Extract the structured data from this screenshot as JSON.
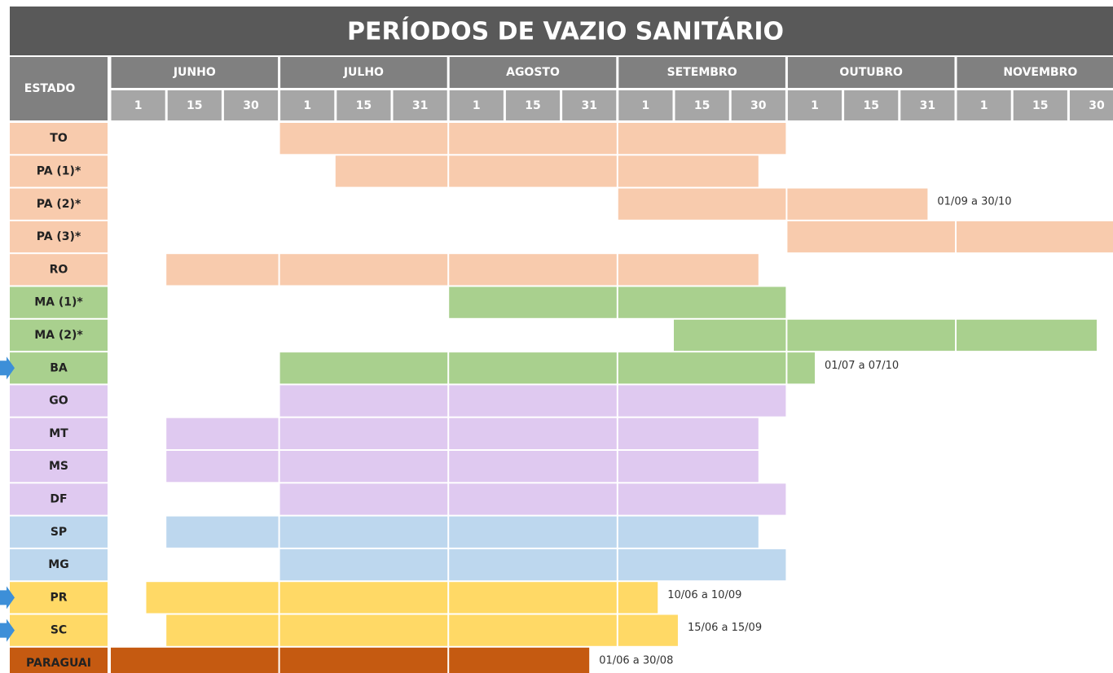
{
  "chart_data": {
    "type": "gantt",
    "title": "PERÍODOS DE VAZIO SANITÁRIO",
    "row_header": "ESTADO",
    "months": [
      {
        "name": "JUNHO",
        "days": [
          1,
          15,
          30
        ]
      },
      {
        "name": "JULHO",
        "days": [
          1,
          15,
          31
        ]
      },
      {
        "name": "AGOSTO",
        "days": [
          1,
          15,
          31
        ]
      },
      {
        "name": "SETEMBRO",
        "days": [
          1,
          15,
          30
        ]
      },
      {
        "name": "OUTUBRO",
        "days": [
          1,
          15,
          31
        ]
      },
      {
        "name": "NOVEMBRO",
        "days": [
          1,
          15,
          30
        ]
      }
    ],
    "rows": [
      {
        "name": "TO",
        "color": "#f8cbad",
        "start": "01/07",
        "end": "30/09"
      },
      {
        "name": "PA (1)*",
        "color": "#f8cbad",
        "start": "15/07",
        "end": "29/09"
      },
      {
        "name": "PA (2)*",
        "color": "#f8cbad",
        "start": "01/09",
        "end": "30/10",
        "label": "01/09 a 30/10"
      },
      {
        "name": "PA (3)*",
        "color": "#f8cbad",
        "start": "01/10",
        "end": "30/11"
      },
      {
        "name": "RO",
        "color": "#f8cbad",
        "start": "15/06",
        "end": "29/09"
      },
      {
        "name": "MA (1)*",
        "color": "#a9d08e",
        "start": "01/08",
        "end": "30/09"
      },
      {
        "name": "MA (2)*",
        "color": "#a9d08e",
        "start": "15/09",
        "end": "29/11"
      },
      {
        "name": "BA",
        "color": "#a9d08e",
        "start": "01/07",
        "end": "07/10",
        "label": "01/07 a 07/10",
        "marked": true
      },
      {
        "name": "GO",
        "color": "#dfc9f0",
        "start": "01/07",
        "end": "30/09"
      },
      {
        "name": "MT",
        "color": "#dfc9f0",
        "start": "15/06",
        "end": "29/09"
      },
      {
        "name": "MS",
        "color": "#dfc9f0",
        "start": "15/06",
        "end": "29/09"
      },
      {
        "name": "DF",
        "color": "#dfc9f0",
        "start": "01/07",
        "end": "30/09"
      },
      {
        "name": "SP",
        "color": "#bdd7ee",
        "start": "15/06",
        "end": "29/09"
      },
      {
        "name": "MG",
        "color": "#bdd7ee",
        "start": "01/07",
        "end": "30/09"
      },
      {
        "name": "PR",
        "color": "#ffd966",
        "start": "10/06",
        "end": "10/09",
        "label": "10/06 a 10/09",
        "marked": true
      },
      {
        "name": "SC",
        "color": "#ffd966",
        "start": "15/06",
        "end": "15/09",
        "label": "15/06 a 15/09",
        "marked": true
      },
      {
        "name": "PARAGUAI",
        "color": "#c55a11",
        "start": "01/06",
        "end": "30/08",
        "label": "01/06 a 30/08"
      }
    ]
  }
}
